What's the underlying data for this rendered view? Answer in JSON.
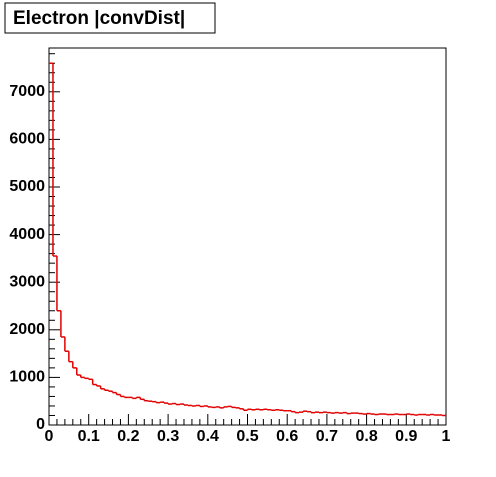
{
  "chart_data": {
    "type": "histogram",
    "title": "Electron |convDist|",
    "color": "#e00000",
    "bins": [
      0,
      0.01,
      0.02,
      0.03,
      0.04,
      0.05,
      0.06,
      0.07,
      0.08,
      0.09,
      0.1,
      0.11,
      0.12,
      0.13,
      0.14,
      0.15,
      0.16,
      0.17,
      0.18,
      0.19,
      0.2,
      0.21,
      0.22,
      0.23,
      0.24,
      0.25,
      0.26,
      0.27,
      0.28,
      0.29,
      0.3,
      0.31,
      0.32,
      0.33,
      0.34,
      0.35,
      0.36,
      0.37,
      0.38,
      0.39,
      0.4,
      0.41,
      0.42,
      0.43,
      0.44,
      0.45,
      0.46,
      0.47,
      0.48,
      0.49,
      0.5,
      0.51,
      0.52,
      0.53,
      0.54,
      0.55,
      0.56,
      0.57,
      0.58,
      0.59,
      0.6,
      0.61,
      0.62,
      0.63,
      0.64,
      0.65,
      0.66,
      0.67,
      0.68,
      0.69,
      0.7,
      0.71,
      0.72,
      0.73,
      0.74,
      0.75,
      0.76,
      0.77,
      0.78,
      0.79,
      0.8,
      0.81,
      0.82,
      0.83,
      0.84,
      0.85,
      0.86,
      0.87,
      0.88,
      0.89,
      0.9,
      0.91,
      0.92,
      0.93,
      0.94,
      0.95,
      0.96,
      0.97,
      0.98,
      0.99,
      1
    ],
    "values": [
      7600,
      3550,
      2400,
      1850,
      1550,
      1330,
      1200,
      1050,
      1000,
      980,
      960,
      850,
      820,
      760,
      730,
      710,
      680,
      640,
      600,
      580,
      580,
      560,
      580,
      540,
      510,
      500,
      490,
      470,
      480,
      460,
      440,
      450,
      430,
      440,
      420,
      410,
      400,
      410,
      390,
      400,
      380,
      370,
      380,
      360,
      380,
      390,
      370,
      360,
      340,
      310,
      330,
      320,
      330,
      320,
      330,
      320,
      310,
      320,
      310,
      300,
      300,
      280,
      260,
      270,
      290,
      280,
      260,
      270,
      260,
      270,
      260,
      250,
      260,
      250,
      260,
      240,
      250,
      250,
      240,
      230,
      240,
      230,
      220,
      230,
      230,
      220,
      220,
      230,
      220,
      220,
      230,
      220,
      210,
      220,
      220,
      210,
      220,
      210,
      210,
      200
    ],
    "xlim": [
      0,
      1
    ],
    "xticks": [
      0,
      0.1,
      0.2,
      0.3,
      0.4,
      0.5,
      0.6,
      0.7,
      0.8,
      0.9,
      1
    ],
    "ylim": [
      0,
      7920
    ],
    "yticks": [
      0,
      1000,
      2000,
      3000,
      4000,
      5000,
      6000,
      7000
    ]
  }
}
